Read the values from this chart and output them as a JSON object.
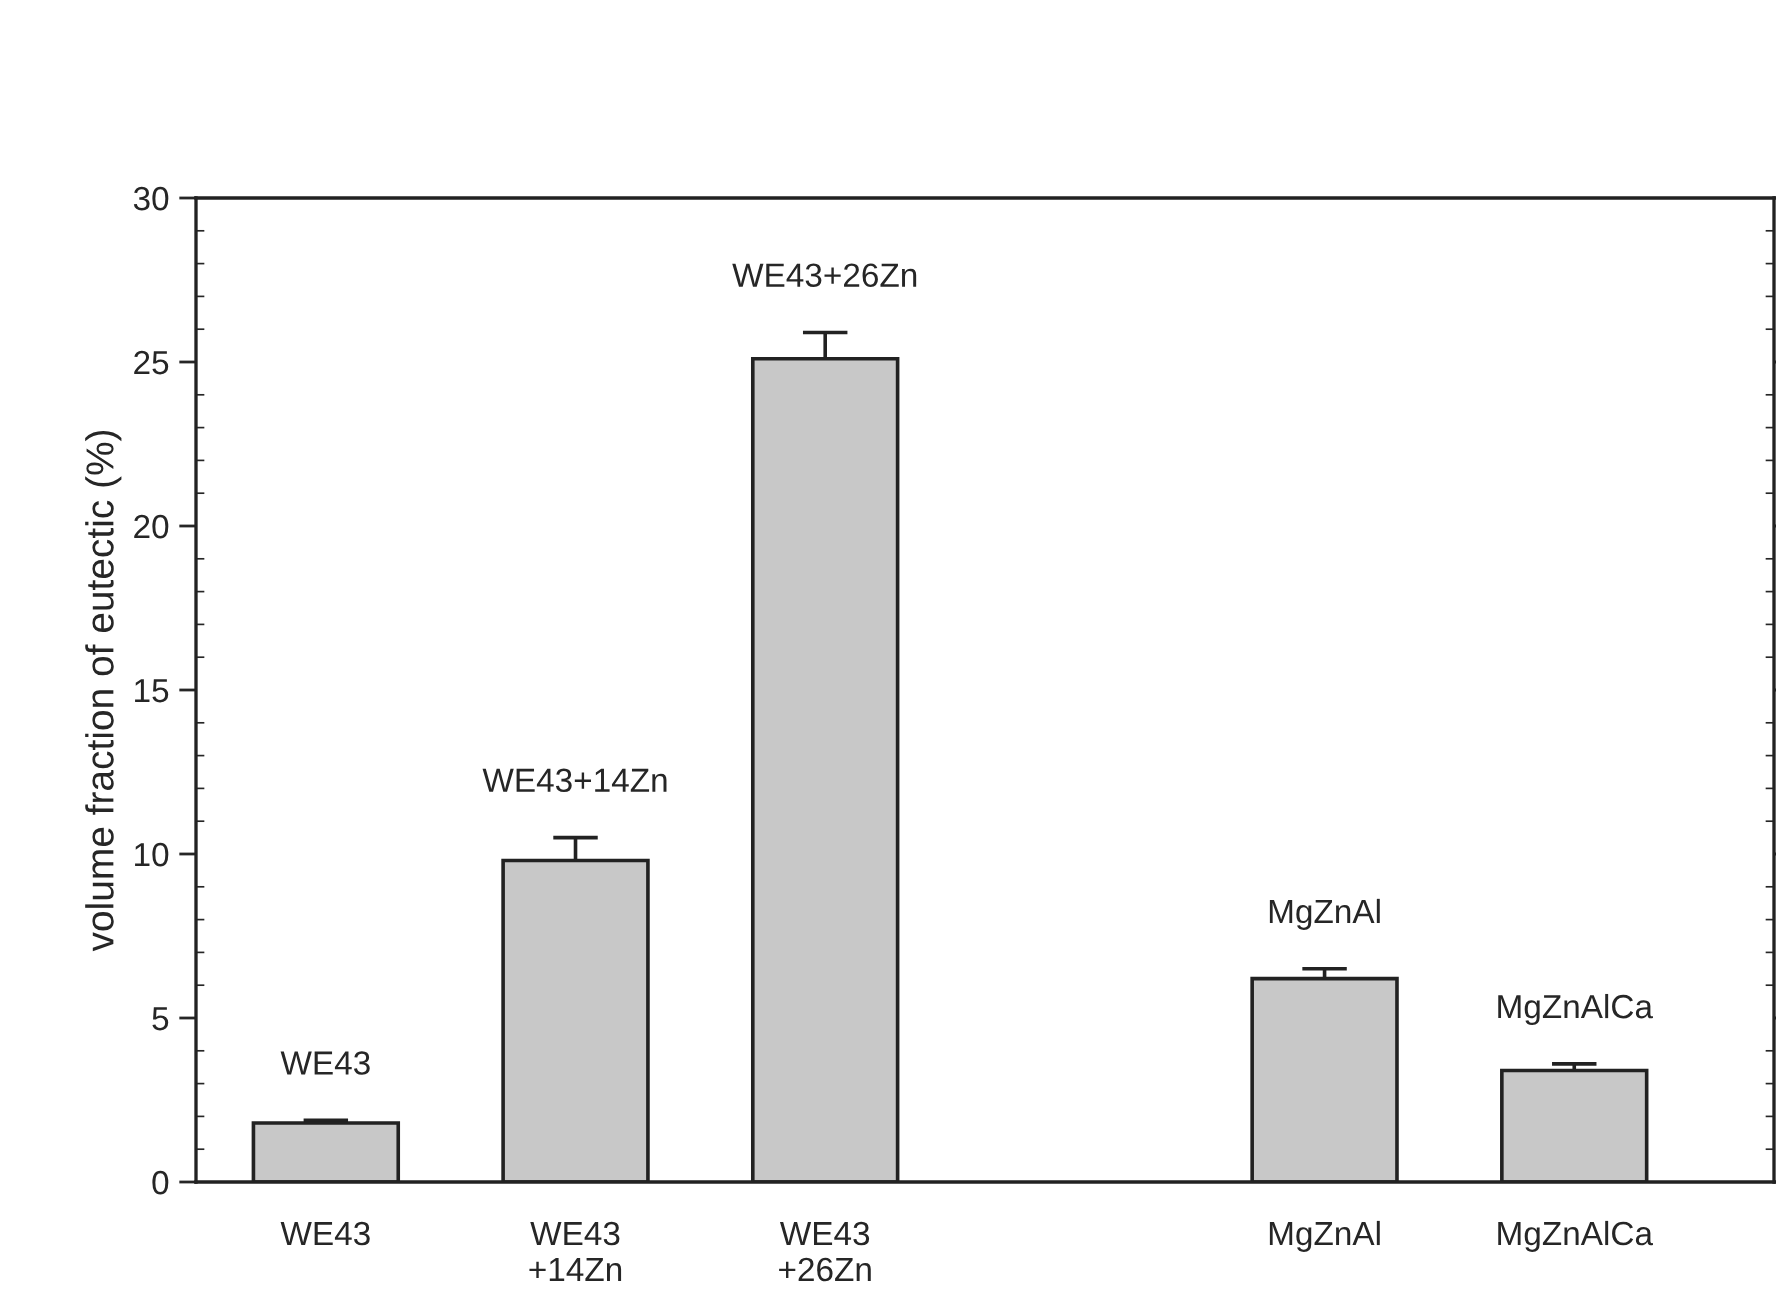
{
  "chart_data": {
    "type": "bar",
    "ylabel": "volume fraction of eutectic (%)",
    "categories": [
      "WE43",
      "WE43\n+14Zn",
      "WE43\n+26Zn",
      null,
      "MgZnAl",
      "MgZnAlCa"
    ],
    "values": [
      1.8,
      9.8,
      25.1,
      null,
      6.2,
      3.4
    ],
    "errors": [
      0.08,
      0.7,
      0.8,
      null,
      0.3,
      0.2
    ],
    "color": "#c8c8c8",
    "ylim": [
      0,
      30
    ],
    "yticks": [
      0,
      5,
      10,
      15,
      20,
      25,
      30
    ],
    "grid": false,
    "annotations": [
      "WE43",
      "WE43+14Zn",
      "WE43+26Zn",
      "MgZnAl",
      "MgZnAlCa"
    ]
  }
}
